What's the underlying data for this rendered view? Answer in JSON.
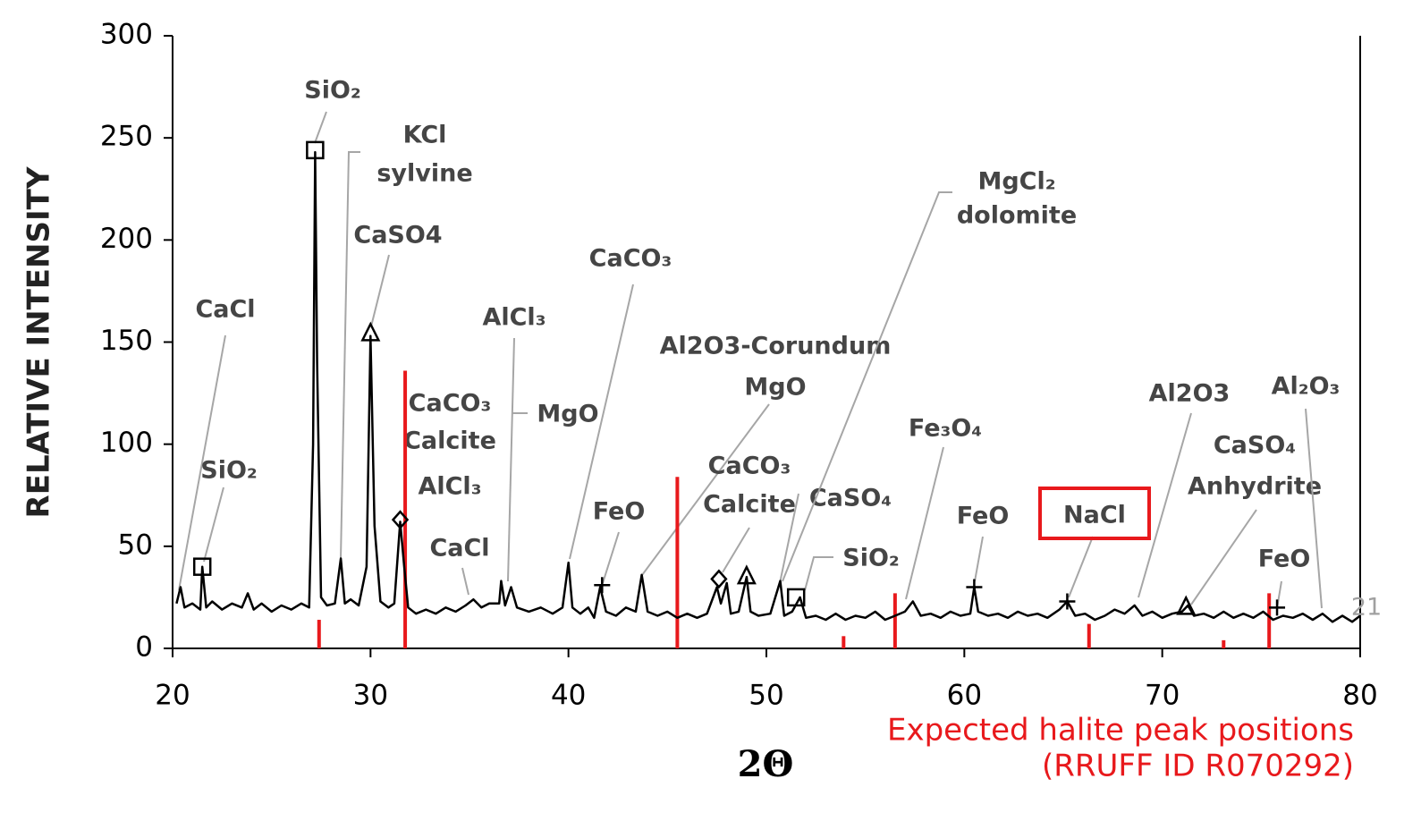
{
  "chart_data": {
    "type": "line",
    "y_label": "RELATIVE INTENSITY",
    "x_label": "2Θ",
    "xlim": [
      20,
      80
    ],
    "xticks": [
      20,
      30,
      40,
      50,
      60,
      70,
      80
    ],
    "ylim": [
      0,
      300
    ],
    "yticks": [
      0,
      50,
      100,
      150,
      200,
      250,
      300
    ],
    "x": [
      20.2,
      20.4,
      20.6,
      21.0,
      21.4,
      21.5,
      21.7,
      22.0,
      22.5,
      23.0,
      23.5,
      23.8,
      24.1,
      24.5,
      25.0,
      25.5,
      26.0,
      26.5,
      26.9,
      27.1,
      27.2,
      27.3,
      27.5,
      27.8,
      28.2,
      28.5,
      28.7,
      29.0,
      29.4,
      29.8,
      30.0,
      30.2,
      30.5,
      30.9,
      31.2,
      31.5,
      31.7,
      31.9,
      32.3,
      32.8,
      33.3,
      33.8,
      34.3,
      34.8,
      35.2,
      35.6,
      36.0,
      36.5,
      36.6,
      36.8,
      37.1,
      37.4,
      38.0,
      38.6,
      39.2,
      39.7,
      40.0,
      40.2,
      40.6,
      41.0,
      41.3,
      41.6,
      41.9,
      42.4,
      42.9,
      43.4,
      43.7,
      44.0,
      44.5,
      45.0,
      45.5,
      46.0,
      46.5,
      47.0,
      47.5,
      47.7,
      48.0,
      48.2,
      48.6,
      49.0,
      49.2,
      49.6,
      50.2,
      50.7,
      50.9,
      51.3,
      51.7,
      52.0,
      52.5,
      53.0,
      53.5,
      54.0,
      54.5,
      55.0,
      55.5,
      56.0,
      56.5,
      57.0,
      57.4,
      57.8,
      58.3,
      58.8,
      59.3,
      59.8,
      60.3,
      60.5,
      60.7,
      61.2,
      61.7,
      62.2,
      62.7,
      63.2,
      63.7,
      64.2,
      64.8,
      65.2,
      65.6,
      66.1,
      66.6,
      67.1,
      67.6,
      68.1,
      68.6,
      69.0,
      69.5,
      70.0,
      70.5,
      71.0,
      71.3,
      71.6,
      72.1,
      72.6,
      73.1,
      73.6,
      74.1,
      74.6,
      75.1,
      75.6,
      76.1,
      76.6,
      77.1,
      77.6,
      78.1,
      78.6,
      79.1,
      79.6,
      80.0
    ],
    "series": [
      {
        "color": "#000000",
        "values": [
          22,
          30,
          20,
          22,
          19,
          40,
          20,
          23,
          19,
          22,
          20,
          27,
          19,
          22,
          18,
          21,
          19,
          22,
          20,
          100,
          243,
          140,
          25,
          21,
          22,
          44,
          22,
          24,
          21,
          40,
          153,
          60,
          23,
          20,
          22,
          62,
          40,
          20,
          17,
          19,
          17,
          20,
          18,
          21,
          24,
          20,
          22,
          22,
          33,
          21,
          30,
          20,
          18,
          20,
          17,
          20,
          42,
          20,
          17,
          20,
          15,
          30,
          18,
          16,
          20,
          18,
          36,
          18,
          16,
          18,
          15,
          17,
          15,
          17,
          30,
          22,
          32,
          17,
          18,
          35,
          18,
          16,
          17,
          33,
          16,
          18,
          25,
          15,
          16,
          14,
          17,
          14,
          16,
          15,
          18,
          14,
          16,
          18,
          23,
          16,
          17,
          15,
          18,
          16,
          17,
          30,
          18,
          16,
          17,
          15,
          18,
          16,
          17,
          15,
          19,
          23,
          16,
          17,
          14,
          16,
          19,
          17,
          21,
          16,
          18,
          15,
          17,
          18,
          21,
          16,
          17,
          15,
          18,
          15,
          17,
          15,
          18,
          14,
          16,
          15,
          17,
          14,
          17,
          13,
          16,
          13,
          16
        ]
      }
    ],
    "markers": [
      {
        "shape": "square",
        "x": 21.5,
        "y": 40
      },
      {
        "shape": "square",
        "x": 27.2,
        "y": 244
      },
      {
        "shape": "triangle",
        "x": 30.0,
        "y": 154
      },
      {
        "shape": "diamond",
        "x": 31.5,
        "y": 63
      },
      {
        "shape": "plus",
        "x": 41.7,
        "y": 31
      },
      {
        "shape": "diamond",
        "x": 47.6,
        "y": 34
      },
      {
        "shape": "triangle",
        "x": 49.0,
        "y": 35
      },
      {
        "shape": "square",
        "x": 51.5,
        "y": 25
      },
      {
        "shape": "plus",
        "x": 60.5,
        "y": 30
      },
      {
        "shape": "plus",
        "x": 65.2,
        "y": 23
      },
      {
        "shape": "triangle",
        "x": 71.2,
        "y": 20
      },
      {
        "shape": "plus",
        "x": 75.8,
        "y": 20
      }
    ],
    "reference_lines": {
      "name": [
        "Expected halite peak positions",
        "(RRUFF ID R070292)"
      ],
      "color": "#e8191c",
      "x": [
        27.4,
        31.75,
        45.5,
        53.9,
        56.5,
        66.3,
        73.1,
        75.4
      ],
      "values": [
        14,
        136,
        84,
        6,
        27,
        12,
        4,
        27
      ]
    },
    "annotations": [
      "CaCl",
      "SiO₂",
      "SiO₂",
      "KCl",
      "sylvine",
      "CaSO4",
      "CaCO₃",
      "Calcite",
      "AlCl₃",
      "AlCl₃",
      "MgO",
      "CaCl",
      "CaCO₃",
      "FeO",
      "Al2O3-Corundum",
      "MgO",
      "CaCO₃",
      "Calcite",
      "CaSO₄",
      "SiO₂",
      "MgCl₂",
      "dolomite",
      "Fe₃O₄",
      "FeO",
      "NaCl",
      "Al2O3",
      "CaSO₄",
      "Anhydrite",
      "FeO",
      "Al₂O₃",
      "21"
    ]
  }
}
